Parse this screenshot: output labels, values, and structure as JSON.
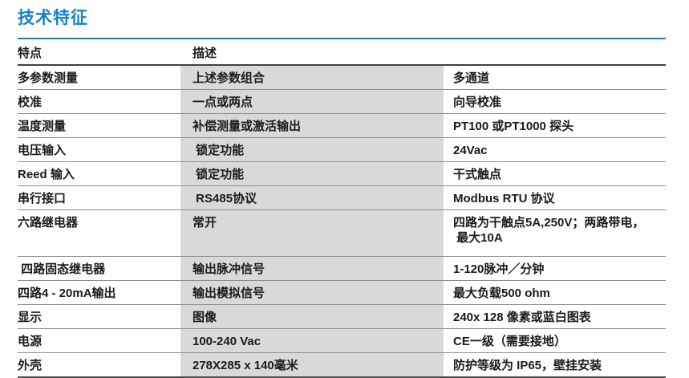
{
  "page": {
    "title": "技术特征"
  },
  "colors": {
    "title_blue": "#1581c5",
    "divider_blue": "#2e74b5",
    "row_shade": "#d9d9d9",
    "text": "#1a1a1a"
  },
  "table": {
    "headers": {
      "feature": "特点",
      "description": "描述"
    },
    "rows": [
      {
        "feature": "多参数测量",
        "description": "上述参数组合",
        "detail": "多通道"
      },
      {
        "feature": "校准",
        "description": "一点或两点",
        "detail": "向导校准"
      },
      {
        "feature": "温度测量",
        "description": "补偿测量或激活输出",
        "detail": "PT100 或PT1000 探头"
      },
      {
        "feature": "电压输入",
        "description": " 锁定功能",
        "detail": "24Vac"
      },
      {
        "feature": "Reed 输入",
        "description": " 锁定功能",
        "detail": "干式触点"
      },
      {
        "feature": "串行接口",
        "description": " RS485协议",
        "detail": "Modbus RTU 协议"
      },
      {
        "feature": "六路继电器",
        "description": "常开",
        "detail": "四路为干触点5A,250V；两路带电，\n 最大10A"
      },
      {
        "feature": " 四路固态继电器",
        "description": "输出脉冲信号",
        "detail": "1-120脉冲／分钟"
      },
      {
        "feature": "四路4 - 20mA输出",
        "description": "输出模拟信号",
        "detail": "最大负载500 ohm"
      },
      {
        "feature": "显示",
        "description": "图像",
        "detail": "240x 128 像素或蓝白图表"
      },
      {
        "feature": "电源",
        "description": "100-240 Vac",
        "detail": "CE一级（需要接地）"
      },
      {
        "feature": "外壳",
        "description": "278X285 x 140毫米",
        "detail": "防护等级为 IP65，壁挂安装"
      }
    ]
  }
}
